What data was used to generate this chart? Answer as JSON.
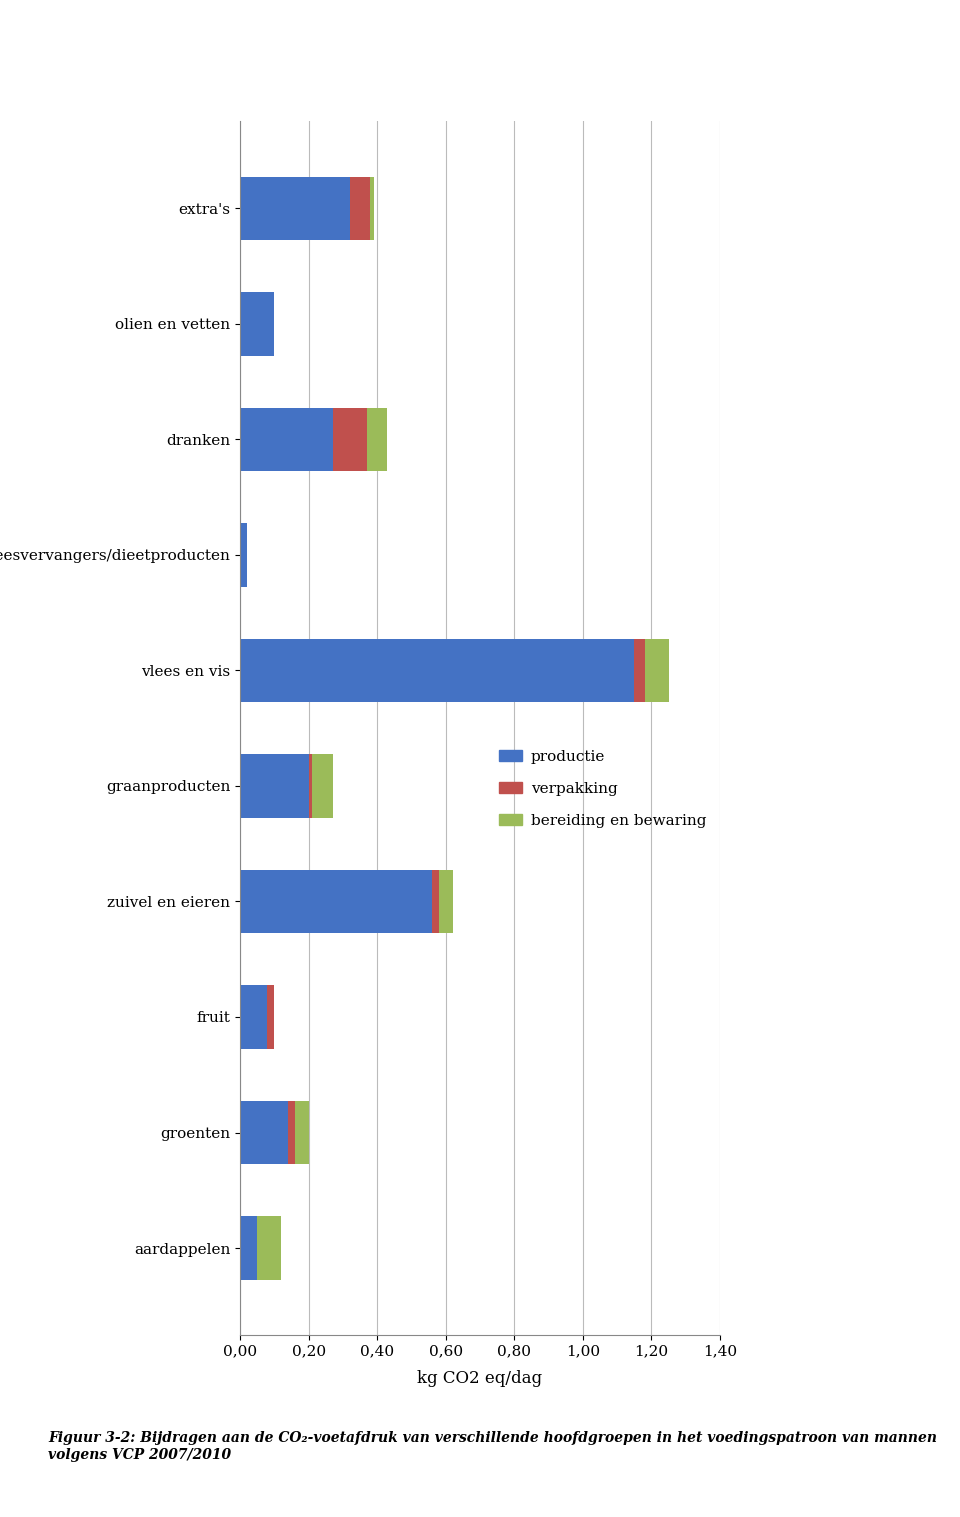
{
  "categories": [
    "extra's",
    "olien en vetten",
    "dranken",
    "vleesvervangers/dieetproducten",
    "vlees en vis",
    "graanproducten",
    "zuivel en eieren",
    "fruit",
    "groenten",
    "aardappelen"
  ],
  "productie": [
    0.32,
    0.1,
    0.27,
    0.02,
    1.15,
    0.2,
    0.56,
    0.08,
    0.14,
    0.05
  ],
  "verpakking": [
    0.06,
    0.0,
    0.1,
    0.0,
    0.03,
    0.01,
    0.02,
    0.02,
    0.02,
    0.0
  ],
  "bereiding": [
    0.01,
    0.0,
    0.06,
    0.0,
    0.07,
    0.06,
    0.04,
    0.0,
    0.04,
    0.07
  ],
  "color_productie": "#4472C4",
  "color_verpakking": "#C0504D",
  "color_bereiding": "#9BBB59",
  "xlabel": "kg CO2 eq/dag",
  "xlim": [
    0.0,
    1.4
  ],
  "xticks": [
    0.0,
    0.2,
    0.4,
    0.6,
    0.8,
    1.0,
    1.2,
    1.4
  ],
  "xtick_labels": [
    "0,00",
    "0,20",
    "0,40",
    "0,60",
    "0,80",
    "1,00",
    "1,20",
    "1,40"
  ],
  "legend_labels": [
    "productie",
    "verpakking",
    "bereiding en bewaring"
  ],
  "figure_caption": "Figuur 3-2: Bijdragen aan de CO₂-voetafdruk van verschillende hoofdgroepen in het voedingspatroon van mannen volgens VCP 2007/2010",
  "bar_height": 0.55,
  "grid_color": "#BBBBBB",
  "bg_color": "#FFFFFF",
  "text_color": "#000000"
}
